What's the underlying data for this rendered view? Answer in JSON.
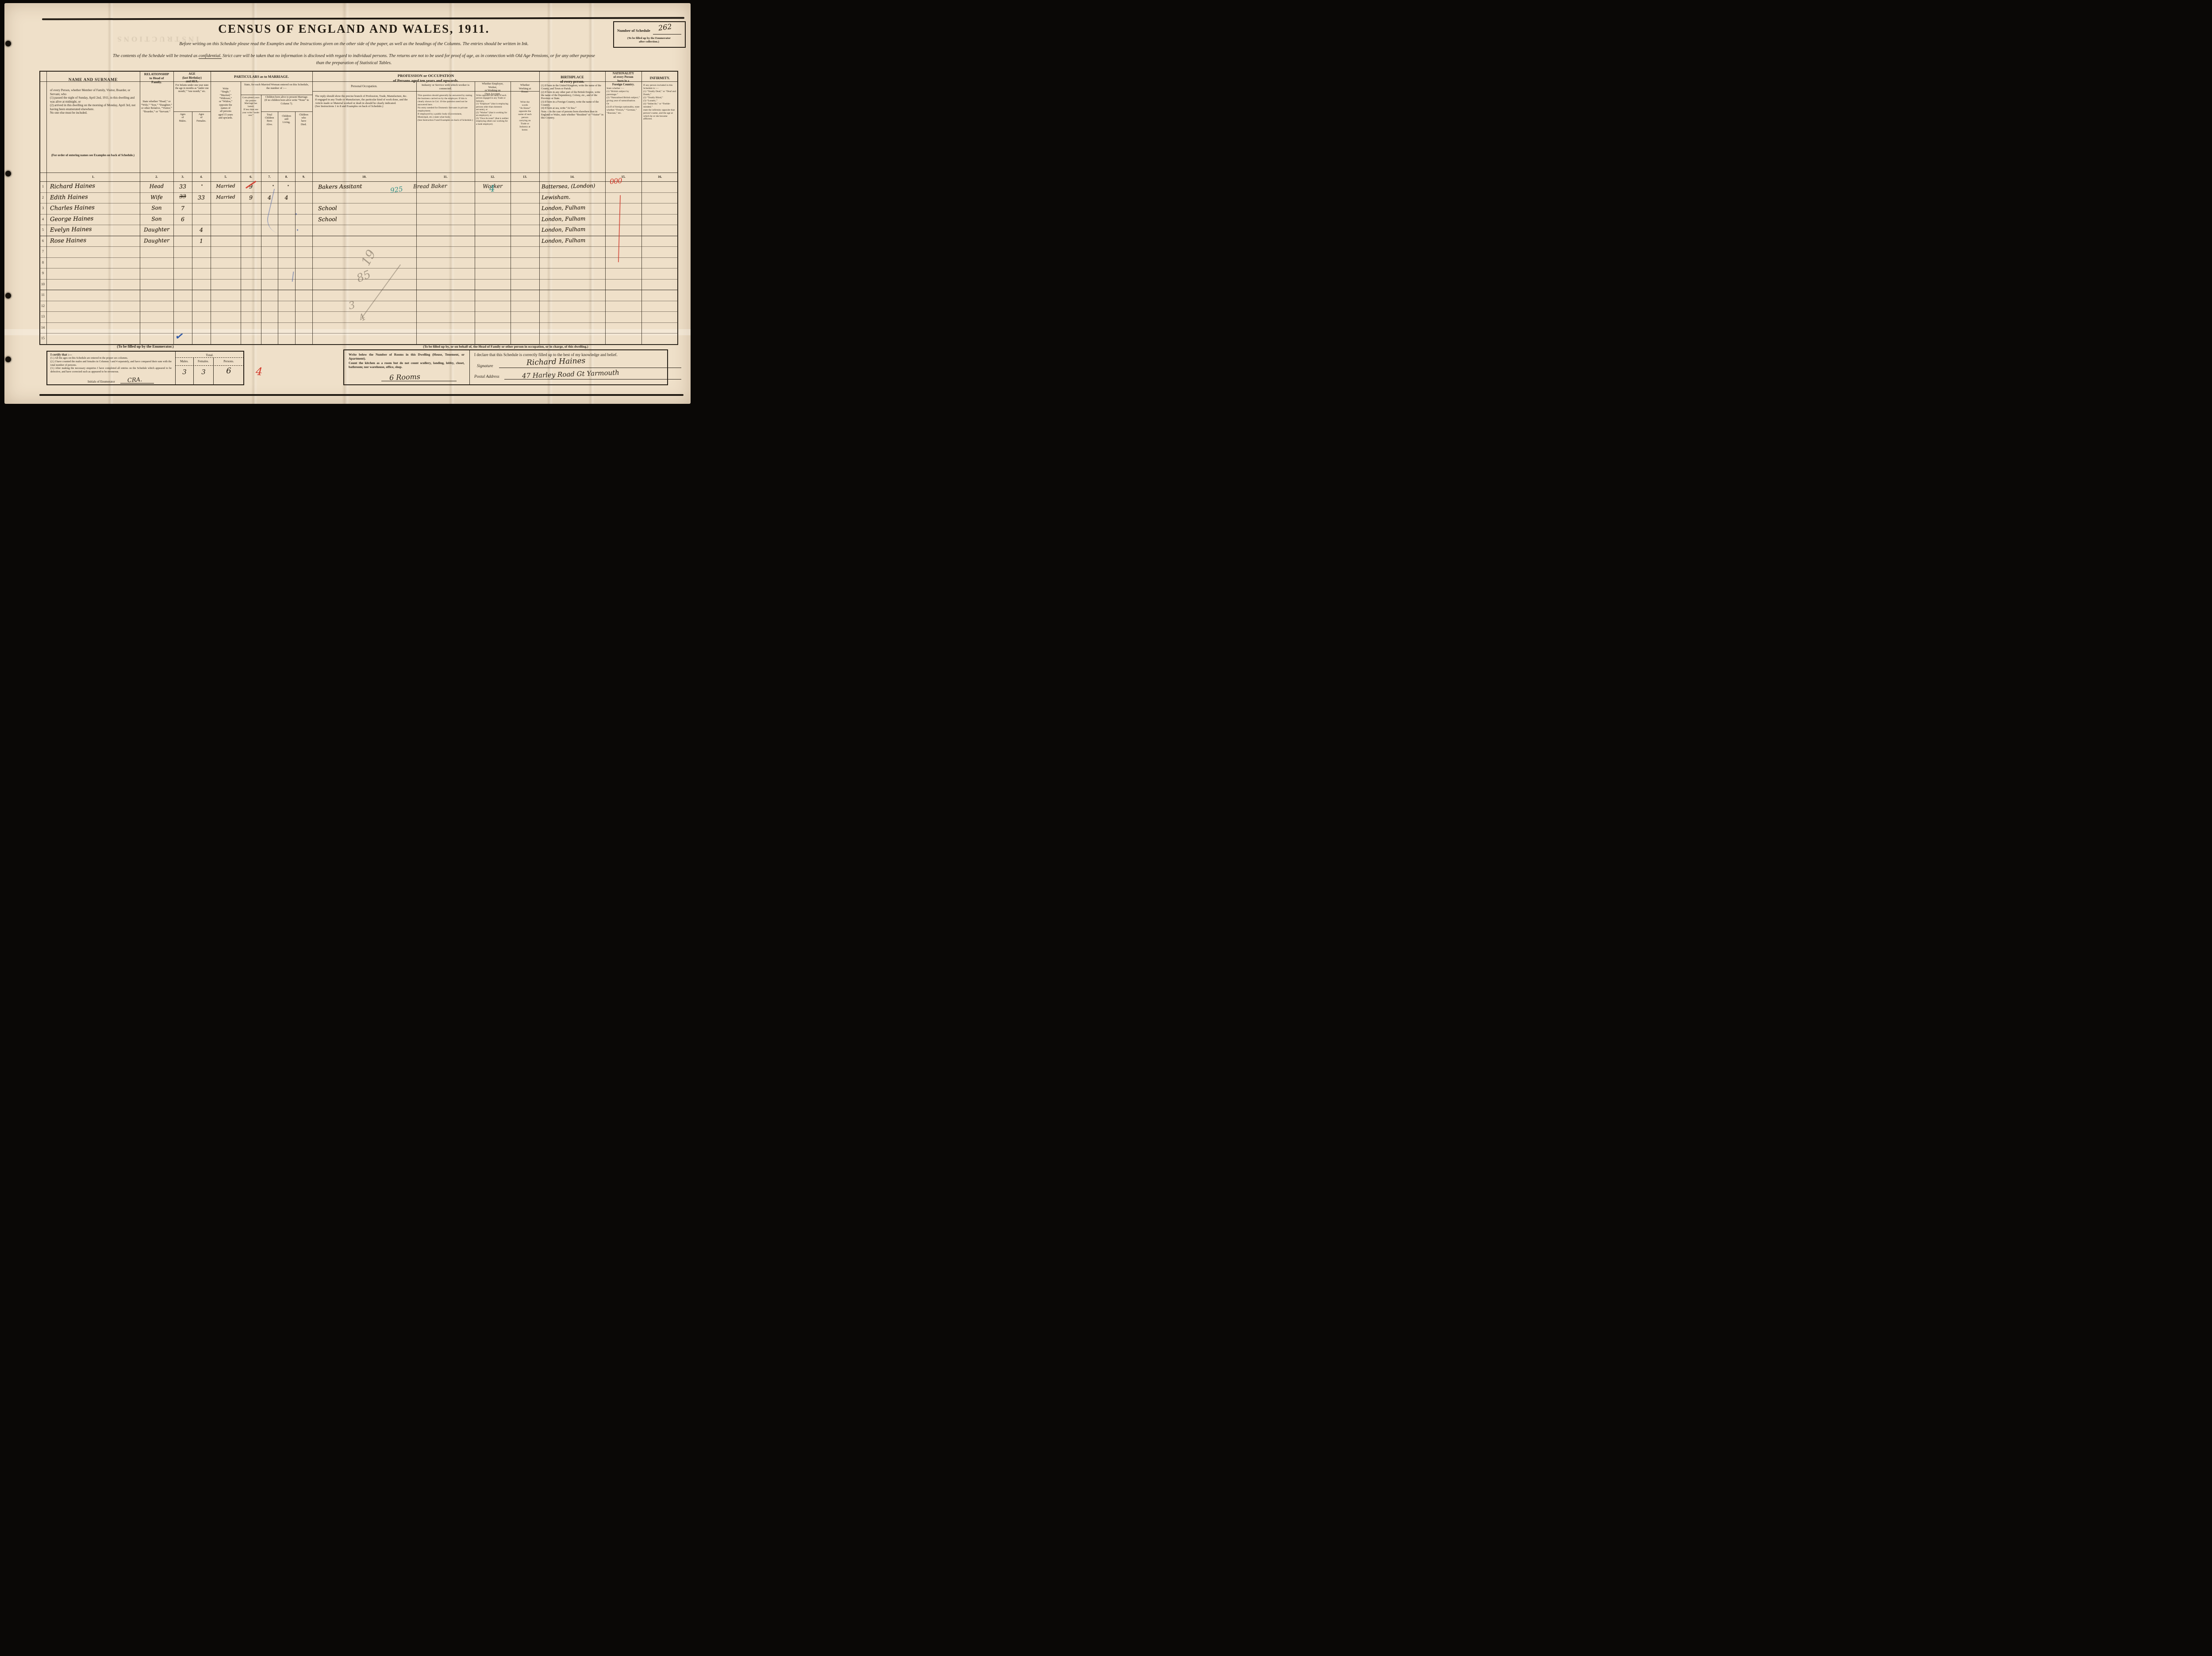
{
  "title": "CENSUS OF ENGLAND AND WALES, 1911.",
  "intro": {
    "line1": "Before writing on this Schedule please read the Examples and the Instructions given on the other side of the paper, as well as the headings of the Columns.  The entries should be written in Ink.",
    "line2_before": "The contents of the Schedule will be treated as ",
    "line2_underlined": "confidential.",
    "line2_after": "  Strict care will be taken that no information is disclosed with regard to individual persons.  The returns are not to be used for proof of age, as in connection with Old Age Pensions, or for any other purpose",
    "line3": "than the preparation of Statistical Tables."
  },
  "schedule_box": {
    "label": "Number of Schedule",
    "value": "262",
    "note": "(To be filled up by the Enumerator\nafter collection.)"
  },
  "artifacts": {
    "bleedthrough": "INSTRUCTIONS"
  },
  "headers": {
    "name": {
      "title": "NAME AND SURNAME",
      "body": "of every Person, whether Member of Family, Visitor, Boarder, or Servant, who\n(1) passed the night of Sunday, April 2nd, 1911, in this dwelling and was alive at midnight, or\n(2) arrived in this dwelling on the morning of Monday, April 3rd, not having been enumerated elsewhere.\nNo one else must be included.",
      "note": "(For order of entering names see Examples on back of Schedule.)"
    },
    "relationship": {
      "title": "RELATIONSHIP\nto Head of\nFamily.",
      "body": "State whether “Head,” or “Wife,” “Son,” “Daughter,” or other Relative, “Visitor,” “Boarder,” or “Servant.”"
    },
    "age": {
      "title": "AGE\n(last Birthday)\nand SEX.",
      "body": "For Infants under one year state the age in months as “under one month,” “one month,” etc.",
      "males": "Ages\nof\nMales.",
      "females": "Ages\nof\nFemales."
    },
    "marriage": {
      "title": "PARTICULARS as to MARRIAGE.",
      "single": "Write\n“Single,”\n“Married,”\n“Widower,”\nor “Widow,”\nopposite the\nnames of\nall persons\naged 15 years\nand upwards.",
      "married_woman": "State, for each Married Woman entered on this Schedule, the number of :—",
      "completed": "Com-pleted years the present Marriage has lasted.\nIf less than one year write “under one.”",
      "children": "Children born alive to present Marriage.\n(If no children born alive write “None” in Column 7).",
      "born": "Total\nChildren\nBorn\nAlive.",
      "living": "Children\nstill\nLiving.",
      "died": "Children\nwho\nhave\nDied."
    },
    "profession": {
      "title": "PROFESSION or OCCUPATION\nof Persons aged ten years and upwards.",
      "personal_title": "Personal Occupation.",
      "personal_body": "The reply should show the precise branch of Profession, Trade, Manufacture, &c.\nIf engaged in any Trade or Manufacture, the particular kind of work done, and the Article made or Material worked or dealt in should be clearly indicated.\n(See Instructions 1 to 8 and Examples on back of Schedule.)",
      "industry_title": "Industry or Service with which worker is connected.",
      "industry_body": "This question should generally be answered by stating the business carried on by the employer.  If this is clearly shown in Col. 10 the question need not be answered here.\nNo entry needed for Domestic Servants in private employment.\nIf employed by a public body (Government, Municipal, etc.) state what body.\n(See Instruction 9 and Examples on back of Schedule.)",
      "employer_title": "Whether Employer,\nWorker,\nor Working on\nOwn Account.",
      "employer_body": "Write opposite the name of each person engaged in any Trade or Industry,\n(1) “Employer” (that is employing persons other than domestic servants), or\n(2) “Worker” (that is working for an employer), or\n(3) “Own Account” (that is neither employing others nor working for a trade employer).",
      "home_title": "Whether\nWorking at\nHome.",
      "home_body": "Write the\nwords\n“At Home”\nopposite the\nname of each\nperson\ncarrying on\nTrade or\nIndustry at\nhome."
    },
    "birthplace": {
      "title": "BIRTHPLACE\nof every person.",
      "body": "(1) If born in the United Kingdom, write the name of the County, and Town or Parish.\n(2) If born in any other part of the British Empire, write the name of the Dependency, Colony, etc., and of the Province or State.\n(3) If born in a Foreign Country, write the name of the Country.\n(4) If born at sea, write “At Sea.”\nNote.—In the case of persons born elsewhere than in England or Wales, state whether “Resident” or “Visitor” in this Country."
    },
    "nationality": {
      "title": "NATIONALITY\nof every Person\nborn in a\nForeign Country.",
      "body": "State whether :—\n(1) “British subject by parentage.”\n(2) “Naturalised British subject,” giving year of naturalisation.\nOr\n(3) If of foreign nationality, state whether “French,” “German,” “Russian,” etc."
    },
    "infirmity": {
      "title": "INFIRMITY.",
      "body": "If any person included in this Schedule is :—\n(1) “Totally Deaf,” or “Deaf and Dumb,”\n(2) “Totally Blind,”\n(3) “Lunatic,”\n(4) “Imbecile,” or “Feeble-minded,”\nstate the infirmity opposite that person’s name, and the age at which he or she became afflicted."
    }
  },
  "columns": {
    "numbers": [
      "1.",
      "2.",
      "3.",
      "4.",
      "5.",
      "6.",
      "7.",
      "8.",
      "9.",
      "10.",
      "11.",
      "12.",
      "13.",
      "14.",
      "15.",
      "16."
    ]
  },
  "table": {
    "rows": [
      {
        "num": "1",
        "name": "Richard Haines",
        "relationship": "Head",
        "age_m": "33",
        "marriage": "Married",
        "years": "9",
        "occupation": "Bakers Assitant",
        "industry": "Bread Baker",
        "employment": "Worker",
        "birthplace": "Battersea, (London)"
      },
      {
        "num": "2",
        "name": "Edith Haines",
        "relationship": "Wife",
        "age_f": "33",
        "marriage": "Married",
        "years": "9",
        "born": "4",
        "living": "4",
        "birthplace": "Lewisham."
      },
      {
        "num": "3",
        "name": "Charles Haines",
        "relationship": "Son",
        "age_m": "7",
        "occupation": "School",
        "birthplace": "London, Fulham"
      },
      {
        "num": "4",
        "name": "George Haines",
        "relationship": "Son",
        "age_m": "6",
        "occupation": "School",
        "birthplace": "London, Fulham"
      },
      {
        "num": "5",
        "name": "Evelyn Haines",
        "relationship": "Daughter",
        "age_f": "4",
        "birthplace": "London, Fulham"
      },
      {
        "num": "6",
        "name": "Rose Haines",
        "relationship": "Daughter",
        "age_f": "1",
        "birthplace": "London, Fulham"
      },
      {
        "num": "7"
      },
      {
        "num": "8"
      },
      {
        "num": "9"
      },
      {
        "num": "10"
      },
      {
        "num": "11"
      },
      {
        "num": "12"
      },
      {
        "num": "13"
      },
      {
        "num": "14"
      },
      {
        "num": "15"
      }
    ]
  },
  "marks": {
    "occupation_code": "925",
    "employment_code": "4",
    "nationality_code": "000",
    "enumerator_count": "4",
    "check": "✓",
    "struck_age": "33",
    "pencil_1": "19",
    "pencil_2": "85",
    "pencil_3": "3",
    "pencil_4": "4"
  },
  "enumerator_box": {
    "title": "(To be filled up by the Enumerator.)",
    "certify": "I certify that :—",
    "items": "(1.) All the ages on this Schedule are entered in the proper sex columns.\n(2.) I have counted the males and females in Columns 3 and 4 separately, and have compared their sum with the total number of persons.\n(3.) After making the necessary enquiries I have completed all entries on the Schedule which appeared to be defective, and have corrected such as appeared to be erroneous.",
    "initials_label": "Initials of Enumerator",
    "initials_value": "CRA.",
    "total_label": "Total.",
    "males_label": "Males.",
    "females_label": "Females.",
    "persons_label": "Persons.",
    "males_value": "3",
    "females_value": "3",
    "persons_value": "6"
  },
  "household_box": {
    "header": "(To be filled up by, or on behalf of, the Head of Family or other person in occupation, or in charge, of this dwelling.)",
    "rooms_text": "Write below the Number of Rooms in this Dwelling (House, Tenement, or Apartment).\nCount the kitchen as a room but do not count scullery, landing, lobby, closet, bathroom; nor warehouse, office, shop.",
    "rooms_value": "6 Rooms",
    "declaration": "I declare that this Schedule is correctly filled up to the best of my knowledge and belief.",
    "signature_label": "Signature",
    "signature_value": "Richard Haines",
    "address_label": "Postal Address",
    "address_value": "47 Harley Road Gt Yarmouth"
  }
}
